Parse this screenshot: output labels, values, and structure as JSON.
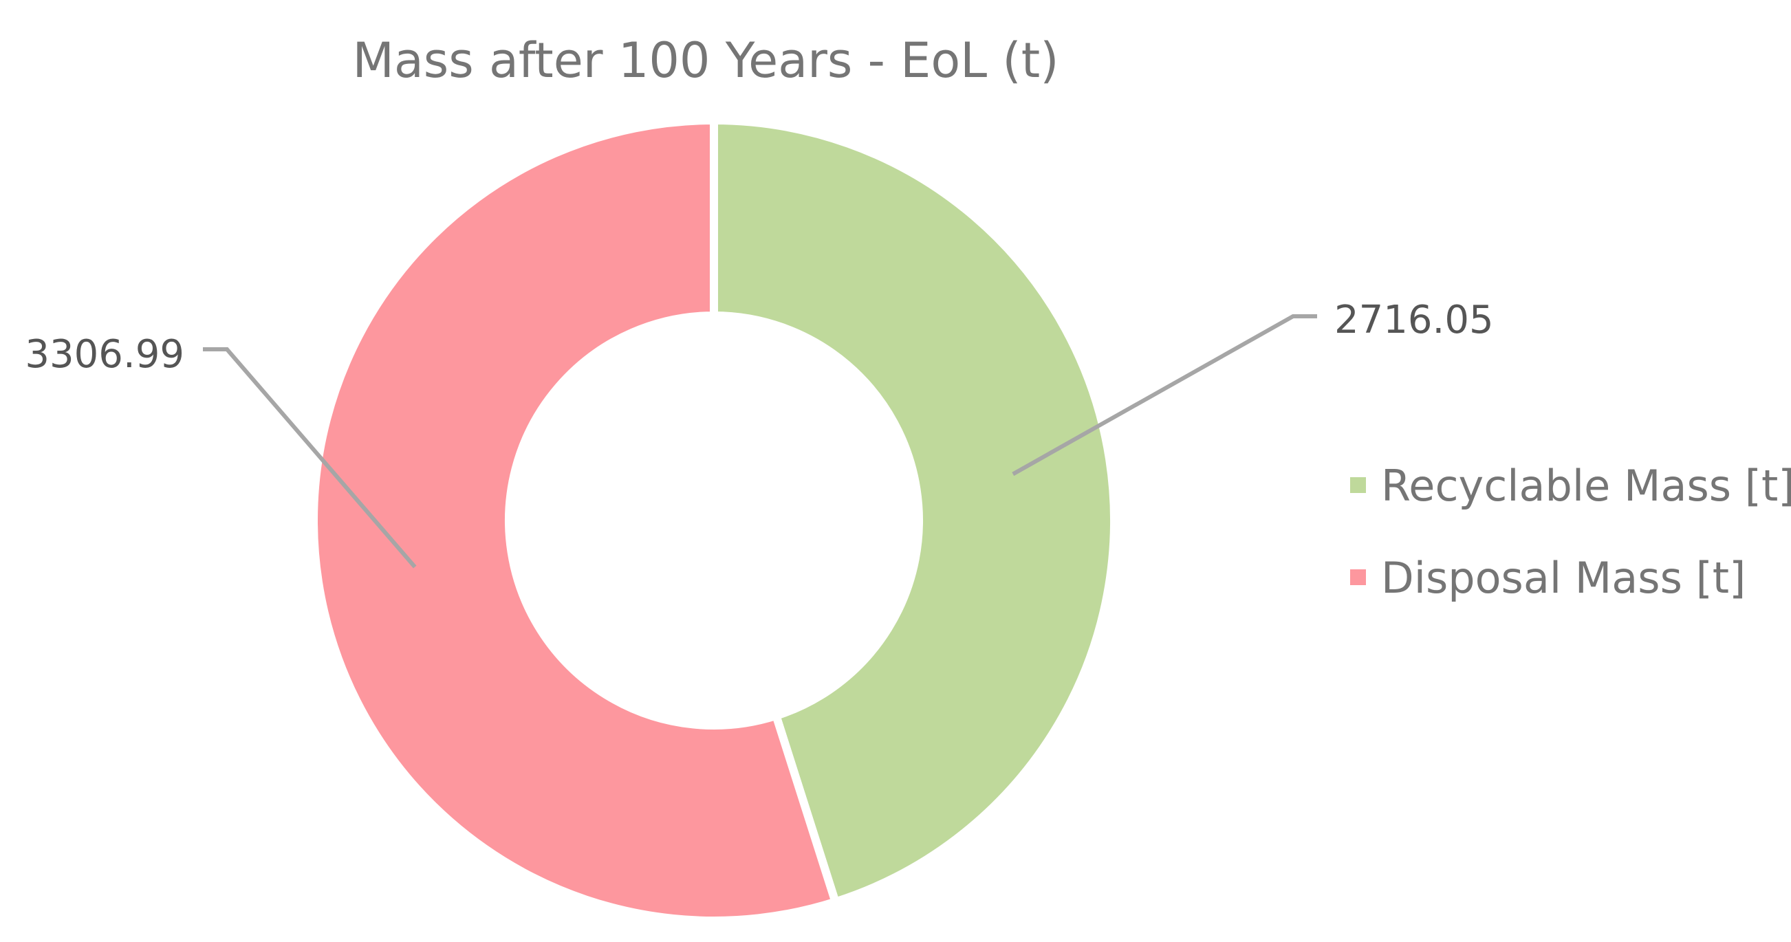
{
  "chart_data": {
    "type": "pie",
    "variant": "doughnut",
    "title": "Mass after 100 Years - EoL (t)",
    "categories": [
      "Recyclable Mass [t]",
      "Disposal Mass [t]"
    ],
    "values": [
      2716.05,
      3306.99
    ],
    "data_labels": [
      "2716.05",
      "3306.99"
    ],
    "colors": [
      "#bfd99b",
      "#fd979e"
    ],
    "legend": {
      "placement": "right",
      "items": [
        {
          "label": "Recyclable Mass [t]",
          "color": "#bfd99b"
        },
        {
          "label": "Disposal Mass [t]",
          "color": "#fd979e"
        }
      ]
    }
  }
}
